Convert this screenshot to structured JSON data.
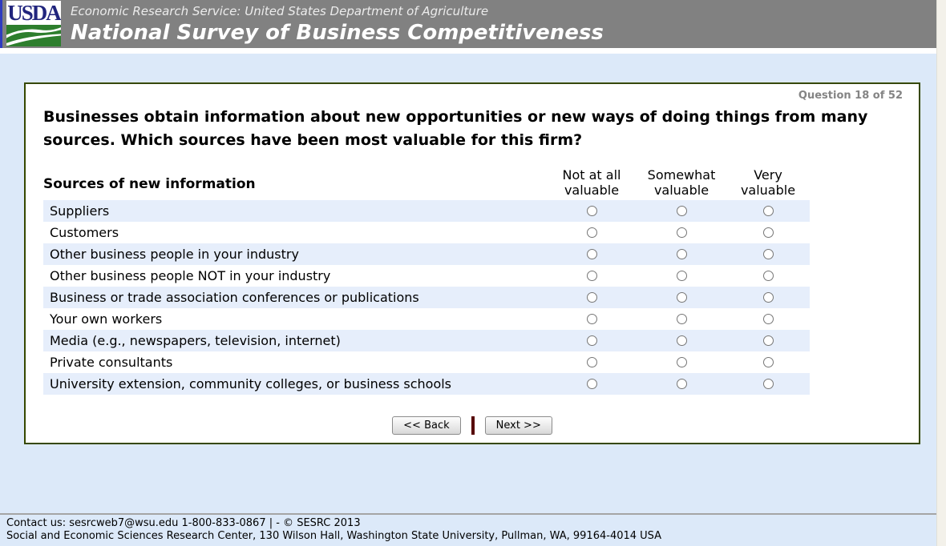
{
  "header": {
    "logo_text": "USDA",
    "agency_line": "Economic Research Service: United States Department of Agriculture",
    "survey_title": "National Survey of Business Competitiveness"
  },
  "question": {
    "counter": "Question 18 of 52",
    "text": "Businesses obtain information about new opportunities or new ways of doing things from many sources. Which sources have been most valuable for this firm?"
  },
  "table": {
    "row_header": "Sources of new information",
    "columns": [
      "Not at all\nvaluable",
      "Somewhat\nvaluable",
      "Very\nvaluable"
    ],
    "column_names": [
      "not-at-all-valuable",
      "somewhat-valuable",
      "very-valuable"
    ],
    "rows": [
      "Suppliers",
      "Customers",
      "Other business people in your industry",
      "Other business people NOT in your industry",
      "Business or trade association conferences or publications",
      "Your own workers",
      "Media (e.g., newspapers, television, internet)",
      "Private consultants",
      "University extension, community colleges, or business schools"
    ]
  },
  "buttons": {
    "back": "<< Back",
    "next": "Next >>"
  },
  "footer": {
    "line1": "Contact us: sesrcweb7@wsu.edu 1-800-833-0867 | - © SESRC 2013",
    "line2": "Social and Economic Sciences Research Center, 130 Wilson Hall, Washington State University, Pullman, WA, 99164-4014 USA"
  },
  "colors": {
    "header_bg": "#818181",
    "page_bg": "#dce9f9",
    "row_stripe": "#e6eefb",
    "box_border": "#364800",
    "logo_blue": "#21257d",
    "logo_green": "#2d7e2d",
    "separator_maroon": "#560000",
    "counter_gray": "#848484"
  }
}
